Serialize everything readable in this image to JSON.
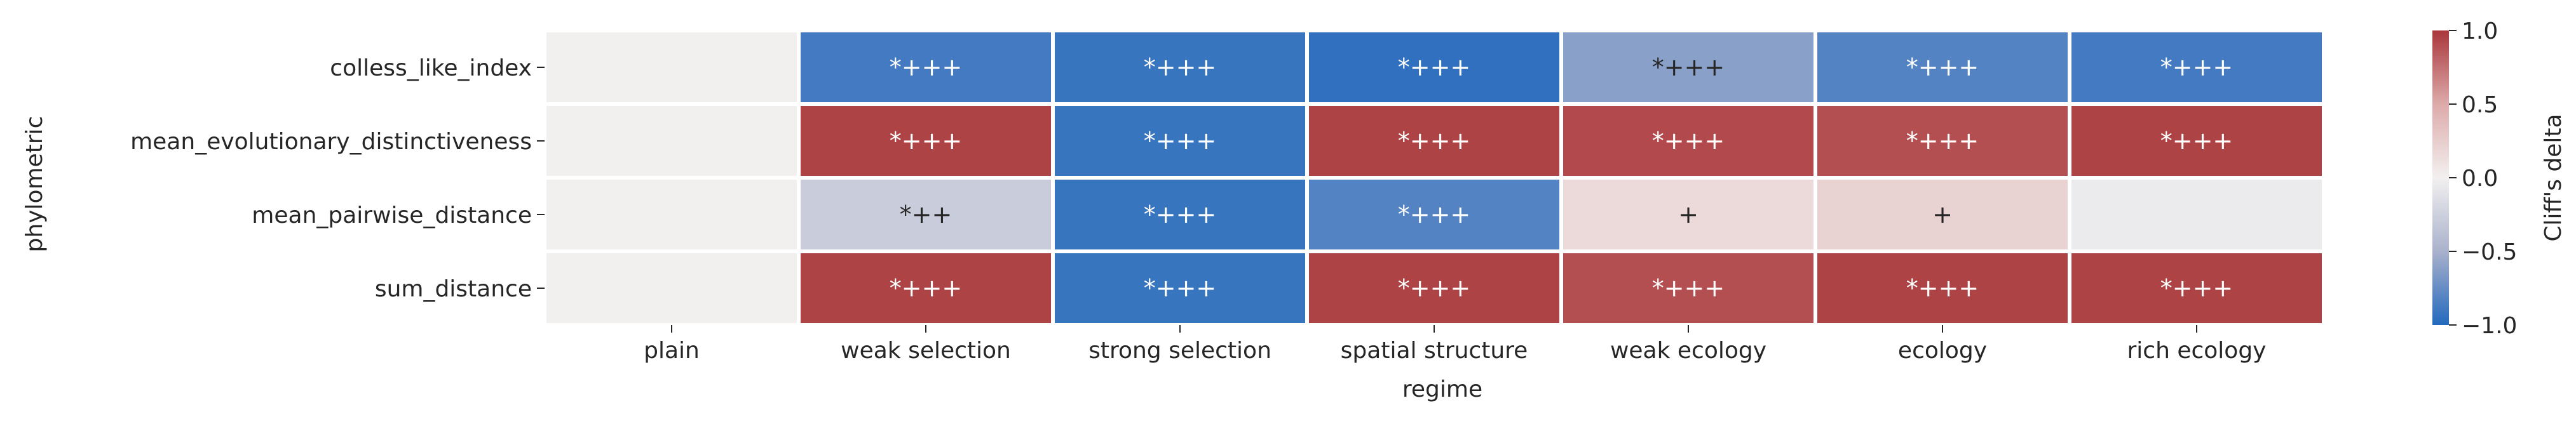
{
  "chart_data": {
    "type": "heatmap",
    "xlabel": "regime",
    "ylabel": "phylometric",
    "x_categories": [
      "plain",
      "weak selection",
      "strong selection",
      "spatial structure",
      "weak ecology",
      "ecology",
      "rich ecology"
    ],
    "y_categories": [
      "colless_like_index",
      "mean_evolutionary_distinctiveness",
      "mean_pairwise_distance",
      "sum_distance"
    ],
    "values": [
      [
        0.0,
        -0.88,
        -0.92,
        -0.95,
        -0.62,
        -0.82,
        -0.88
      ],
      [
        0.0,
        0.95,
        -0.92,
        0.95,
        0.92,
        0.9,
        0.95
      ],
      [
        0.0,
        -0.28,
        -0.92,
        -0.82,
        0.16,
        0.21,
        -0.05
      ],
      [
        0.0,
        0.95,
        -0.92,
        0.95,
        0.9,
        0.95,
        0.95
      ]
    ],
    "annotations": [
      [
        "",
        "*+++",
        "*+++",
        "*+++",
        "*+++",
        "*+++",
        "*+++"
      ],
      [
        "",
        "*+++",
        "*+++",
        "*+++",
        "*+++",
        "*+++",
        "*+++"
      ],
      [
        "",
        "*++",
        "*+++",
        "*+++",
        "+",
        "+",
        ""
      ],
      [
        "",
        "*+++",
        "*+++",
        "*+++",
        "*+++",
        "*+++",
        "*+++"
      ]
    ],
    "colorbar": {
      "label": "Cliff's delta",
      "range": [
        -1.0,
        1.0
      ],
      "ticks": [
        -1.0,
        -0.5,
        0.0,
        0.5,
        1.0
      ],
      "tick_labels": [
        "−1.0",
        "−0.5",
        "0.0",
        "0.5",
        "1.0"
      ],
      "colormap": "vlag",
      "stops": [
        "#2369bd",
        "#a9b1cc",
        "#f2f0ef",
        "#ddaaaa",
        "#a9373b"
      ]
    }
  }
}
